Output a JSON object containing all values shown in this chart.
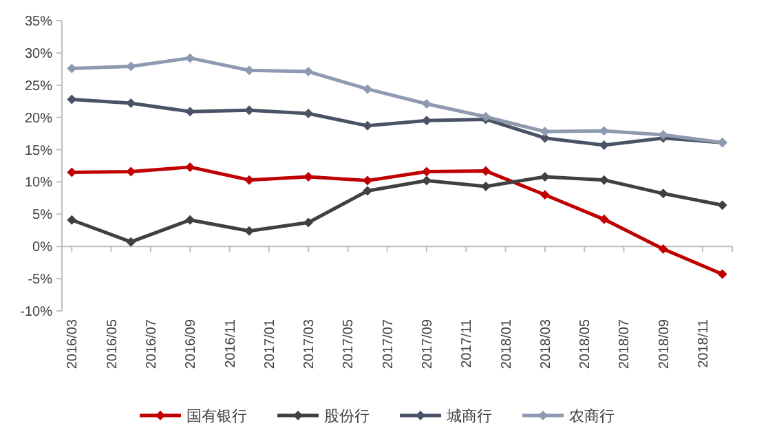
{
  "chart_data": {
    "type": "line",
    "x": [
      "2016-03",
      "2016-06",
      "2016-09",
      "2016-12",
      "2017-03",
      "2017-06",
      "2017-09",
      "2017-12",
      "2018-03",
      "2018-06",
      "2018-09",
      "2018-12"
    ],
    "xlim": [
      "2016-02-16",
      "2018-12-16"
    ],
    "xticks": [
      {
        "value": "2016-03",
        "label": "2016/03"
      },
      {
        "value": "2016-05",
        "label": "2016/05"
      },
      {
        "value": "2016-07",
        "label": "2016/07"
      },
      {
        "value": "2016-09",
        "label": "2016/09"
      },
      {
        "value": "2016-11",
        "label": "2016/11"
      },
      {
        "value": "2017-01",
        "label": "2017/01"
      },
      {
        "value": "2017-03",
        "label": "2017/03"
      },
      {
        "value": "2017-05",
        "label": "2017/05"
      },
      {
        "value": "2017-07",
        "label": "2017/07"
      },
      {
        "value": "2017-09",
        "label": "2017/09"
      },
      {
        "value": "2017-11",
        "label": "2017/11"
      },
      {
        "value": "2018-01",
        "label": "2018/01"
      },
      {
        "value": "2018-03",
        "label": "2018/03"
      },
      {
        "value": "2018-05",
        "label": "2018/05"
      },
      {
        "value": "2018-07",
        "label": "2018/07"
      },
      {
        "value": "2018-09",
        "label": "2018/09"
      },
      {
        "value": "2018-11",
        "label": "2018/11"
      }
    ],
    "ylim": [
      -10,
      35
    ],
    "yticks": [
      {
        "value": -10,
        "label": "-10%"
      },
      {
        "value": -5,
        "label": "-5%"
      },
      {
        "value": 0,
        "label": "0%"
      },
      {
        "value": 5,
        "label": "5%"
      },
      {
        "value": 10,
        "label": "10%"
      },
      {
        "value": 15,
        "label": "15%"
      },
      {
        "value": 20,
        "label": "20%"
      },
      {
        "value": 25,
        "label": "25%"
      },
      {
        "value": 30,
        "label": "30%"
      },
      {
        "value": 35,
        "label": "35%"
      }
    ],
    "series": [
      {
        "name": "国有银行",
        "color": "#c00000",
        "values": [
          11.5,
          11.6,
          12.3,
          10.3,
          10.8,
          10.2,
          11.6,
          11.7,
          8.0,
          4.2,
          -0.4,
          -4.3
        ]
      },
      {
        "name": "股份行",
        "color": "#404040",
        "values": [
          4.1,
          0.7,
          4.1,
          2.4,
          3.7,
          8.6,
          10.2,
          9.3,
          10.8,
          10.3,
          8.2,
          6.4
        ]
      },
      {
        "name": "城商行",
        "color": "#4a5366",
        "values": [
          22.8,
          22.2,
          20.9,
          21.1,
          20.6,
          18.7,
          19.5,
          19.7,
          16.8,
          15.7,
          16.8,
          16.1
        ]
      },
      {
        "name": "农商行",
        "color": "#8e9ab0",
        "values": [
          27.6,
          27.9,
          29.2,
          27.3,
          27.1,
          24.4,
          22.1,
          20.1,
          17.8,
          17.9,
          17.3,
          16.1
        ]
      }
    ],
    "marker": "diamond",
    "line_style": "solid",
    "legend": "bottom"
  }
}
